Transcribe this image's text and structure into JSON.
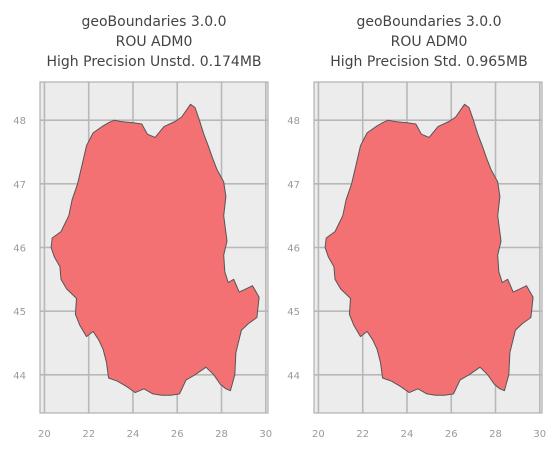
{
  "maps": [
    {
      "title_lines": [
        "geoBoundaries 3.0.0",
        "ROU ADM0",
        "High Precision Unstd. 0.174MB"
      ],
      "xticks": [
        "20",
        "22",
        "24",
        "26",
        "28",
        "30"
      ],
      "yticks": [
        "48",
        "47",
        "46",
        "45",
        "44"
      ]
    },
    {
      "title_lines": [
        "geoBoundaries 3.0.0",
        "ROU ADM0",
        "High Precision Std. 0.965MB"
      ],
      "xticks": [
        "20",
        "22",
        "24",
        "26",
        "28",
        "30"
      ],
      "yticks": [
        "48",
        "47",
        "46",
        "45",
        "44"
      ]
    }
  ],
  "style": {
    "fill_color": "#f47173",
    "stroke_color": "#555555",
    "axes_bg": "#ececec",
    "grid_color": "#b8b8b8",
    "frame_color": "#b0b0b0"
  },
  "chart_data": [
    {
      "type": "map",
      "region": "ROU ADM0",
      "xlim": [
        19.8,
        30.1
      ],
      "ylim": [
        43.4,
        48.6
      ],
      "xticks": [
        20,
        22,
        24,
        26,
        28,
        30
      ],
      "yticks": [
        44,
        45,
        46,
        47,
        48
      ],
      "grid": true
    },
    {
      "type": "map",
      "region": "ROU ADM0",
      "xlim": [
        19.8,
        30.1
      ],
      "ylim": [
        43.4,
        48.6
      ],
      "xticks": [
        20,
        22,
        24,
        26,
        28,
        30
      ],
      "yticks": [
        44,
        45,
        46,
        47,
        48
      ],
      "grid": true
    }
  ]
}
